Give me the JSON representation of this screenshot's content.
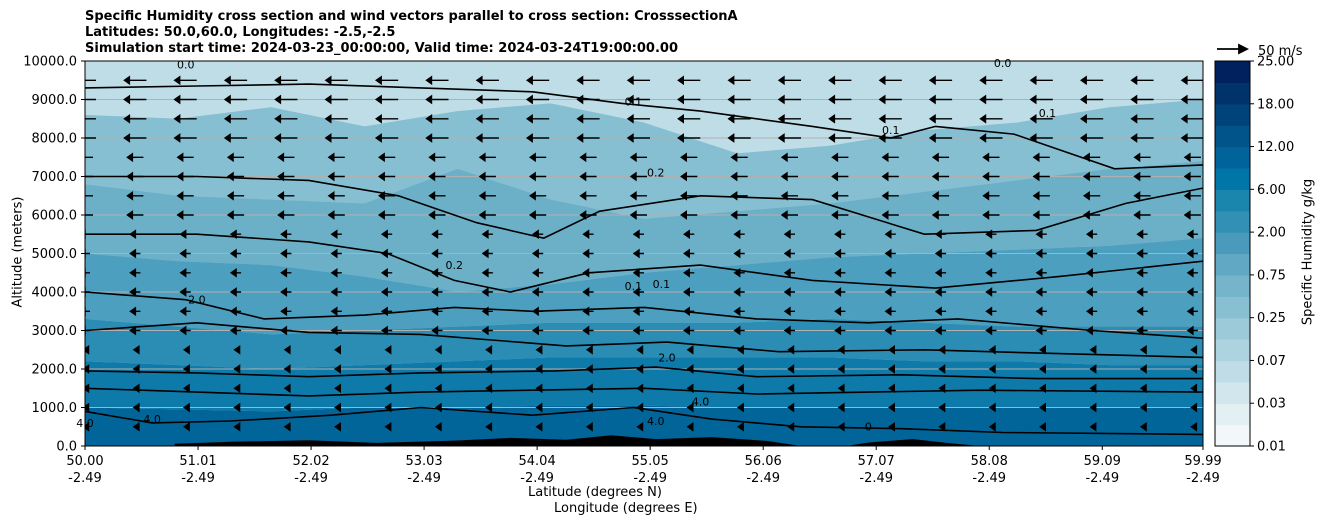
{
  "title_lines": [
    "Specific Humidity cross section and wind vectors parallel to cross section: CrosssectionA",
    "Latitudes: 50.0,60.0, Longitudes: -2.5,-2.5",
    "Simulation start time: 2024-03-23_00:00:00, Valid time: 2024-03-24T19:00:00.00"
  ],
  "reference_vector_label": "50 m/s",
  "colors": {
    "contour_line": "#000000",
    "terrain": "#000000",
    "arrow": "#000000",
    "grid": "#b0b0b0"
  },
  "chart_data": {
    "type": "heatmap",
    "title": "Specific Humidity cross section and wind vectors parallel to cross section: CrosssectionA",
    "ylabel": "Altitude (meters)",
    "xlabel_lines": [
      "Latitude (degrees N)",
      "Longitude (degrees E)"
    ],
    "ylim": [
      0,
      10000
    ],
    "xlim": [
      50.0,
      59.99
    ],
    "y_ticks": [
      0,
      1000,
      2000,
      3000,
      4000,
      5000,
      6000,
      7000,
      8000,
      9000,
      10000
    ],
    "y_tick_labels": [
      "0.0",
      "1000.0",
      "2000.0",
      "3000.0",
      "4000.0",
      "5000.0",
      "6000.0",
      "7000.0",
      "8000.0",
      "9000.0",
      "10000.0"
    ],
    "x_ticks": [
      50.0,
      51.01,
      52.02,
      53.03,
      54.04,
      55.05,
      56.06,
      57.07,
      58.08,
      59.09,
      59.99
    ],
    "x_tick_labels_lat": [
      "50.00",
      "51.01",
      "52.02",
      "53.03",
      "54.04",
      "55.05",
      "56.06",
      "57.07",
      "58.08",
      "59.09",
      "59.99"
    ],
    "x_tick_labels_lon": [
      "-2.49",
      "-2.49",
      "-2.49",
      "-2.49",
      "-2.49",
      "-2.49",
      "-2.49",
      "-2.49",
      "-2.49",
      "-2.49",
      "-2.49"
    ],
    "grid": "horizontal",
    "colorbar": {
      "label": "Specific Humidity g/kg",
      "tick_labels": [
        "0.01",
        "0.03",
        "0.07",
        "0.25",
        "0.75",
        "2.00",
        "6.00",
        "12.00",
        "18.00",
        "25.00"
      ],
      "levels": [
        "0.01",
        "0.02",
        "0.03",
        "0.05",
        "0.07",
        "0.1",
        "0.25",
        "0.5",
        "0.75",
        "1.00",
        "2.00",
        "4.00",
        "6.00",
        "9.00",
        "12.00",
        "15.00",
        "18.00",
        "21.00",
        "25.00"
      ],
      "level_colors": [
        "#f2f7f9",
        "#e2eff3",
        "#d1e6ed",
        "#c0dde7",
        "#aed3e0",
        "#9ccad9",
        "#89bfd2",
        "#75b4cb",
        "#60a8c3",
        "#4a9bbb",
        "#3290b4",
        "#1a85ad",
        "#0075a8",
        "#00649a",
        "#005489",
        "#00437a",
        "#00336a",
        "#00215e"
      ]
    },
    "contour_labels": [
      "0.0",
      "0.0",
      "0.1",
      "0.1",
      "0.1",
      "0.2",
      "0.2",
      "0.1",
      "0.1",
      "2.0",
      "2.0",
      "4.0",
      "4.0",
      "4.0",
      "4.0",
      "0"
    ],
    "contour_lines_g_per_kg": [
      0.1,
      0.2,
      2.0,
      4.0
    ],
    "wind_reference": "50 m/s"
  }
}
